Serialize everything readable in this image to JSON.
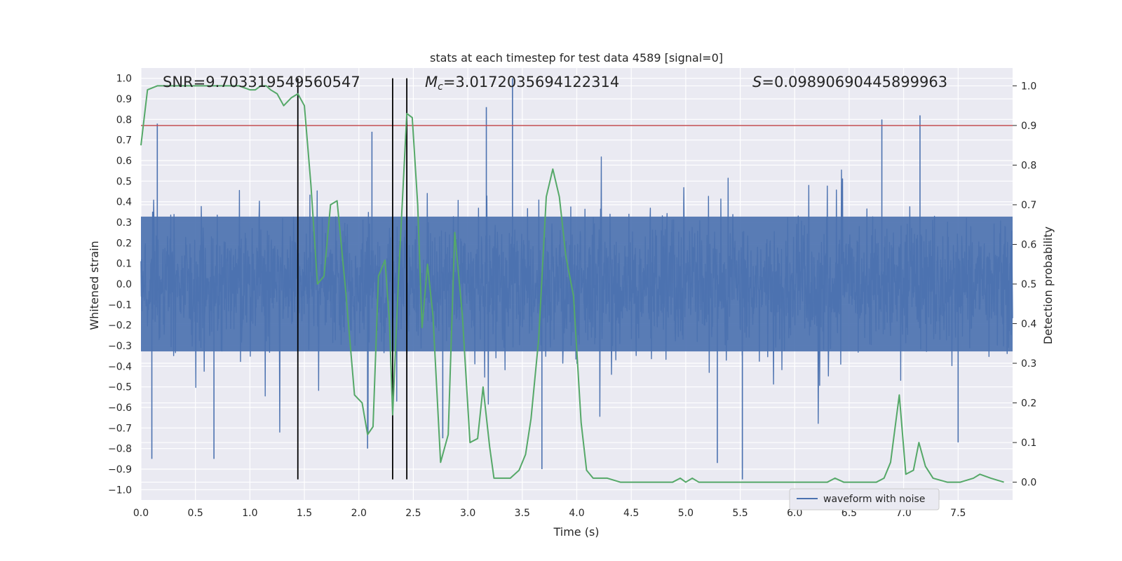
{
  "chart_data": {
    "type": "line",
    "title": "stats at each timestep for test data 4589 [signal=0]",
    "xlabel": "Time (s)",
    "ylabel_left": "Whitened strain",
    "ylabel_right": "Detection probability",
    "xlim": [
      0.0,
      8.0
    ],
    "ylim_left": [
      -1.05,
      1.05
    ],
    "ylim_right": [
      -0.045,
      1.045
    ],
    "grid": true,
    "legend_position": "lower-right",
    "x_ticks": [
      "0.0",
      "0.5",
      "1.0",
      "1.5",
      "2.0",
      "2.5",
      "3.0",
      "3.5",
      "4.0",
      "4.5",
      "5.0",
      "5.5",
      "6.0",
      "6.5",
      "7.0",
      "7.5"
    ],
    "y_left_ticks": [
      "1.0",
      "0.9",
      "0.8",
      "0.7",
      "0.6",
      "0.5",
      "0.4",
      "0.3",
      "0.2",
      "0.1",
      "0.0",
      "-0.1",
      "-0.2",
      "-0.3",
      "-0.4",
      "-0.5",
      "-0.6",
      "-0.7",
      "-0.8",
      "-0.9",
      "-1.0"
    ],
    "y_right_ticks": [
      "1.0",
      "0.9",
      "0.8",
      "0.7",
      "0.6",
      "0.5",
      "0.4",
      "0.3",
      "0.2",
      "0.1",
      "0.0"
    ],
    "stats": {
      "snr_label": "SNR=9.703319549560547",
      "mc_symbol": "M",
      "mc_sub": "c",
      "mc_value": "=3.0172035694122314",
      "s_symbol": "S",
      "s_value": "=0.09890690445899963"
    },
    "threshold": {
      "value": 0.9,
      "axis": "right",
      "color": "#c44e52"
    },
    "vertical_markers": {
      "x": [
        1.44,
        2.31,
        2.44
      ],
      "color": "#000000"
    },
    "series": [
      {
        "name": "waveform with noise",
        "axis": "left",
        "color": "#4c72b0",
        "style": "dense-noise",
        "typical_envelope": 0.42,
        "peak_values": [
          {
            "x": 3.17,
            "y": 0.86
          },
          {
            "x": 3.41,
            "y": 1.0
          },
          {
            "x": 6.8,
            "y": 0.8
          },
          {
            "x": 7.15,
            "y": 0.82
          },
          {
            "x": 0.15,
            "y": 0.78
          },
          {
            "x": 2.12,
            "y": 0.74
          },
          {
            "x": 0.1,
            "y": -0.85
          },
          {
            "x": 5.52,
            "y": -0.95
          },
          {
            "x": 3.68,
            "y": -0.9
          },
          {
            "x": 0.67,
            "y": -0.85
          },
          {
            "x": 5.29,
            "y": -0.87
          },
          {
            "x": 2.77,
            "y": -0.75
          },
          {
            "x": 7.5,
            "y": -0.77
          },
          {
            "x": 2.08,
            "y": -0.8
          }
        ]
      },
      {
        "name": "",
        "axis": "right",
        "color": "#55a868",
        "x": [
          0.0,
          0.06,
          0.15,
          0.3,
          0.5,
          0.7,
          0.9,
          1.0,
          1.05,
          1.1,
          1.15,
          1.19,
          1.25,
          1.31,
          1.38,
          1.44,
          1.5,
          1.56,
          1.62,
          1.68,
          1.74,
          1.8,
          1.88,
          1.96,
          2.03,
          2.08,
          2.13,
          2.18,
          2.24,
          2.28,
          2.31,
          2.37,
          2.44,
          2.49,
          2.54,
          2.58,
          2.63,
          2.68,
          2.75,
          2.82,
          2.88,
          2.95,
          3.02,
          3.09,
          3.14,
          3.2,
          3.24,
          3.31,
          3.39,
          3.47,
          3.53,
          3.58,
          3.65,
          3.72,
          3.78,
          3.84,
          3.9,
          3.97,
          4.04,
          4.09,
          4.15,
          4.21,
          4.28,
          4.4,
          4.6,
          4.8,
          4.88,
          4.95,
          5.0,
          5.06,
          5.12,
          5.3,
          5.5,
          5.7,
          5.9,
          6.1,
          6.3,
          6.37,
          6.45,
          6.6,
          6.75,
          6.82,
          6.88,
          6.96,
          7.02,
          7.09,
          7.14,
          7.2,
          7.27,
          7.4,
          7.52,
          7.64,
          7.7,
          7.8,
          7.92
        ],
        "y": [
          0.85,
          0.99,
          1.0,
          1.0,
          1.0,
          1.0,
          1.0,
          0.99,
          0.99,
          1.0,
          1.0,
          0.99,
          0.98,
          0.95,
          0.97,
          0.98,
          0.95,
          0.75,
          0.5,
          0.52,
          0.7,
          0.71,
          0.48,
          0.22,
          0.2,
          0.12,
          0.14,
          0.52,
          0.56,
          0.41,
          0.17,
          0.55,
          0.93,
          0.92,
          0.7,
          0.39,
          0.55,
          0.42,
          0.05,
          0.12,
          0.63,
          0.42,
          0.1,
          0.11,
          0.24,
          0.09,
          0.01,
          0.01,
          0.01,
          0.03,
          0.07,
          0.16,
          0.36,
          0.72,
          0.79,
          0.72,
          0.57,
          0.47,
          0.15,
          0.03,
          0.01,
          0.01,
          0.01,
          0.0,
          0.0,
          0.0,
          0.0,
          0.01,
          0.0,
          0.01,
          0.0,
          0.0,
          0.0,
          0.0,
          0.0,
          0.0,
          0.0,
          0.01,
          0.0,
          0.0,
          0.0,
          0.01,
          0.05,
          0.22,
          0.02,
          0.03,
          0.1,
          0.04,
          0.01,
          0.0,
          0.0,
          0.01,
          0.02,
          0.01,
          0.0
        ]
      }
    ]
  }
}
